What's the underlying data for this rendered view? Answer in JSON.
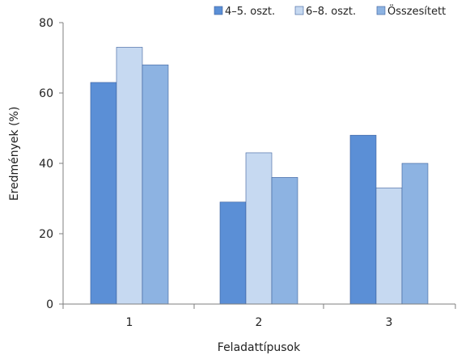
{
  "chart_data": {
    "type": "bar",
    "title": "",
    "xlabel": "Feladattípusok",
    "ylabel": "Eredmények (%)",
    "categories": [
      "1",
      "2",
      "3"
    ],
    "ylim": [
      0,
      80
    ],
    "yticks": [
      0,
      20,
      40,
      60,
      80
    ],
    "grid": false,
    "legend_position": "top-right",
    "series": [
      {
        "name": "4–5. oszt.",
        "color": "#5b8fd6",
        "values": [
          63,
          29,
          48
        ]
      },
      {
        "name": "6–8. oszt.",
        "color": "#c6d9f1",
        "values": [
          73,
          43,
          33
        ]
      },
      {
        "name": "Összesített",
        "color": "#8db3e2",
        "values": [
          68,
          36,
          40
        ]
      }
    ]
  }
}
